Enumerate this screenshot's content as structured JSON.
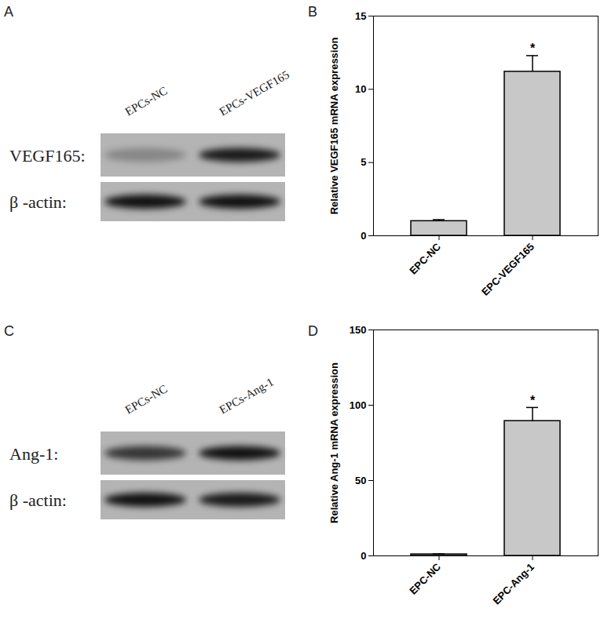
{
  "blots": [
    {
      "panel": "A",
      "lanes": [
        "EPCs-NC",
        "EPCs-VEGF165"
      ],
      "rows": [
        {
          "label": "VEGF165:",
          "intensities": [
            0.25,
            0.85
          ]
        },
        {
          "label": "β -actin:",
          "intensities": [
            0.9,
            0.9
          ]
        }
      ]
    },
    {
      "panel": "C",
      "lanes": [
        "EPCs-NC",
        "EPCs-Ang-1"
      ],
      "rows": [
        {
          "label": "Ang-1:",
          "intensities": [
            0.7,
            0.9
          ]
        },
        {
          "label": "β -actin:",
          "intensities": [
            0.9,
            0.85
          ]
        }
      ]
    }
  ],
  "chart_data": [
    {
      "panel": "B",
      "type": "bar",
      "y_label": "Relative VEGF165 mRNA expression",
      "categories": [
        "EPC-NC",
        "EPC-VEGF165"
      ],
      "values": [
        1.0,
        11.2
      ],
      "errors": [
        0.1,
        1.1
      ],
      "annotations": [
        {
          "category": "EPC-VEGF165",
          "text": "*"
        }
      ],
      "color": "#c8c8c8",
      "ylim": [
        0,
        15
      ],
      "yticks": [
        0,
        5,
        10,
        15
      ]
    },
    {
      "panel": "D",
      "type": "bar",
      "y_label": "Relative Ang-1 mRNA expression",
      "categories": [
        "EPC-NC",
        "EPC-Ang-1"
      ],
      "values": [
        1.0,
        89.5
      ],
      "errors": [
        0.3,
        9.0
      ],
      "annotations": [
        {
          "category": "EPC-Ang-1",
          "text": "*"
        }
      ],
      "color": "#c8c8c8",
      "ylim": [
        0,
        150
      ],
      "yticks": [
        0,
        50,
        100,
        150
      ]
    }
  ]
}
